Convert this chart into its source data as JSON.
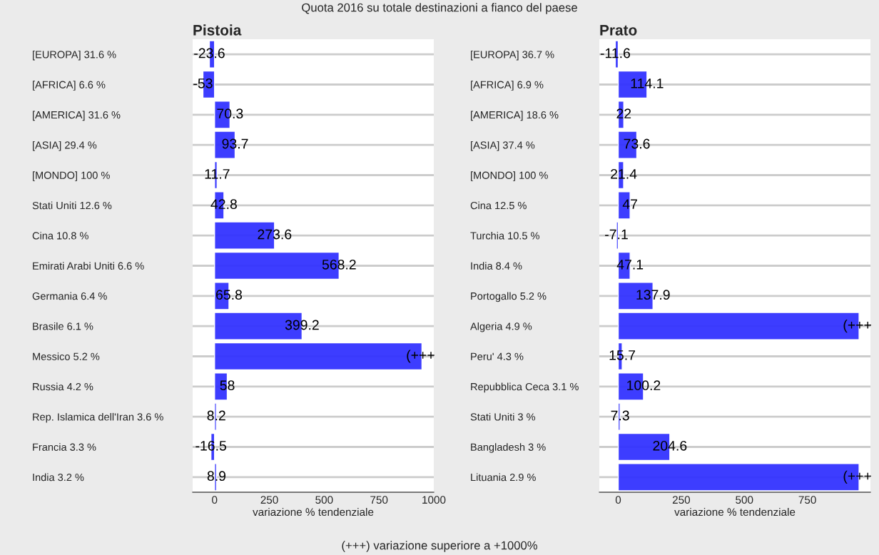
{
  "chart_data": [
    {
      "type": "bar",
      "orientation": "horizontal",
      "title": "Pistoia",
      "xlabel": "variazione % tendenziale",
      "categories": [
        "[EUROPA] 31.6 %",
        "[AFRICA] 6.6 %",
        "[AMERICA] 31.6 %",
        "[ASIA] 29.4 %",
        "[MONDO] 100 %",
        "Stati Uniti 12.6 %",
        "Cina 10.8 %",
        "Emirati Arabi Uniti 6.6 %",
        "Germania 6.4 %",
        "Brasile 6.1 %",
        "Messico 5.2 %",
        "Russia 4.2 %",
        "Rep. Islamica dell'Iran 3.6 %",
        "Francia 3.3 %",
        "India 3.2 %"
      ],
      "values": [
        -23.6,
        -53,
        70.3,
        93.7,
        11.7,
        42.8,
        273.6,
        568.2,
        65.8,
        399.2,
        946,
        58,
        8.2,
        -16.5,
        8.9
      ],
      "value_labels": [
        "-23.6",
        "-53",
        "70.3",
        "93.7",
        "11.7",
        "42.8",
        "273.6",
        "568.2",
        "65.8",
        "399.2",
        "(+++",
        "58",
        "8.2",
        "-16.5",
        "8.9"
      ],
      "color": "#3333ff",
      "xlim": [
        -100,
        1000
      ],
      "xticks": [
        0,
        250,
        500,
        750,
        1000
      ],
      "grid": "y",
      "annotations": [
        "Quota 2016 su totale destinazioni a fianco del paese",
        "(+++) variazione superiore a +1000%"
      ]
    },
    {
      "type": "bar",
      "orientation": "horizontal",
      "title": "Prato",
      "xlabel": "variazione % tendenziale",
      "categories": [
        "[EUROPA] 36.7 %",
        "[AFRICA] 6.9 %",
        "[AMERICA] 18.6 %",
        "[ASIA] 37.4 %",
        "[MONDO] 100 %",
        "Cina 12.5 %",
        "Turchia 10.5 %",
        "India 8.4 %",
        "Portogallo 5.2 %",
        "Algeria 4.9 %",
        "Peru' 4.3 %",
        "Repubblica Ceca 3.1 %",
        "Stati Uniti 3 %",
        "Bangladesh 3 %",
        "Lituania 2.9 %"
      ],
      "values": [
        -11.6,
        114.1,
        22,
        73.6,
        21.4,
        47,
        -7.1,
        47.1,
        137.9,
        955,
        15.7,
        100.2,
        7.3,
        204.6,
        955
      ],
      "value_labels": [
        "-11.6",
        "114.1",
        "22",
        "73.6",
        "21.4",
        "47",
        "-7.1",
        "47.1",
        "137.9",
        "(+++",
        "15.7",
        "100.2",
        "7.3",
        "204.6",
        "(+++"
      ],
      "color": "#3333ff",
      "xlim": [
        -75,
        1000
      ],
      "xticks": [
        0,
        250,
        500,
        750
      ],
      "grid": "y"
    }
  ]
}
